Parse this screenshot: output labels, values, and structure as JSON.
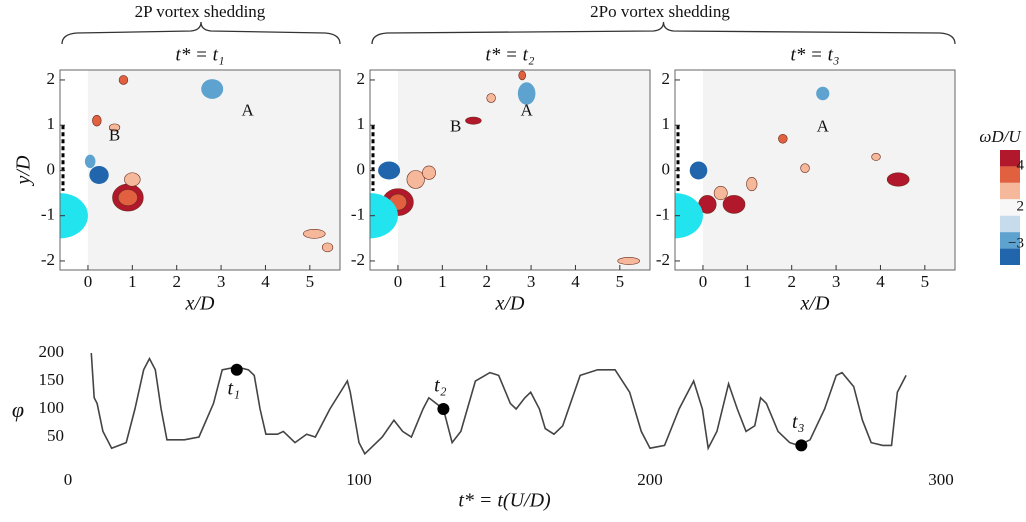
{
  "chart_data": [
    {
      "type": "field",
      "title": "t* = t₁",
      "group_label": "2P vortex shedding",
      "xlabel": "x/D",
      "ylabel": "y/D",
      "xlim": [
        -0.63,
        5.68
      ],
      "ylim": [
        -2.2,
        2.22
      ],
      "xticks": [
        0,
        1,
        2,
        3,
        4,
        5
      ],
      "yticks": [
        -2,
        -1,
        0,
        1,
        2
      ],
      "annotations": [
        "B",
        "A"
      ]
    },
    {
      "type": "field",
      "title": "t* = t₂",
      "group_label": "2Po vortex shedding",
      "xlabel": "x/D",
      "xlim": [
        -0.63,
        5.68
      ],
      "ylim": [
        -2.2,
        2.22
      ],
      "xticks": [
        0,
        1,
        2,
        3,
        4,
        5
      ],
      "yticks": [
        -2,
        -1,
        0,
        1,
        2
      ],
      "annotations": [
        "B",
        "A"
      ]
    },
    {
      "type": "field",
      "title": "t* = t₃",
      "xlabel": "x/D",
      "xlim": [
        -0.63,
        5.68
      ],
      "ylim": [
        -2.2,
        2.22
      ],
      "xticks": [
        0,
        1,
        2,
        3,
        4,
        5
      ],
      "yticks": [
        -2,
        -1,
        0,
        1,
        2
      ],
      "annotations": [
        "A"
      ]
    },
    {
      "type": "colorbar",
      "title": "ωD/U",
      "colors": [
        "#b2182b",
        "#e0603f",
        "#f6b89a",
        "#f7f7f7",
        "#c6dcec",
        "#5ea3cf",
        "#2166ac"
      ],
      "ticks": [
        4,
        2,
        {
          "value": -3,
          "label": "−3"
        }
      ]
    },
    {
      "type": "line",
      "xlabel": "t* = t(U/D)",
      "ylabel": "φ",
      "color": "#444444",
      "xlim": [
        0,
        300
      ],
      "ylim": [
        0,
        200
      ],
      "xticks": [
        0,
        100,
        200,
        300
      ],
      "yticks": [
        50,
        100,
        150,
        200
      ],
      "x": [
        8,
        9,
        10,
        12,
        15,
        20,
        23,
        26,
        28,
        30,
        32,
        34,
        40,
        45,
        50,
        53,
        58,
        62,
        64,
        66,
        68,
        72,
        74,
        78,
        82,
        85,
        90,
        96,
        97,
        100,
        102,
        105,
        108,
        112,
        115,
        118,
        122,
        124,
        129,
        130,
        132,
        135,
        140,
        145,
        148,
        152,
        154,
        157,
        159,
        162,
        164,
        167,
        170,
        176,
        182,
        188,
        193,
        197,
        200,
        205,
        210,
        215,
        218,
        220,
        223,
        227,
        230,
        233,
        236,
        238,
        240,
        244,
        248,
        251,
        255,
        260,
        264,
        266,
        270,
        273,
        276,
        280,
        283,
        285,
        288
      ],
      "values": [
        200,
        120,
        110,
        60,
        30,
        40,
        100,
        170,
        190,
        170,
        100,
        45,
        45,
        50,
        110,
        170,
        175,
        170,
        160,
        100,
        55,
        55,
        60,
        40,
        55,
        50,
        100,
        150,
        130,
        40,
        20,
        35,
        50,
        80,
        60,
        50,
        100,
        120,
        100,
        80,
        40,
        60,
        150,
        165,
        160,
        110,
        100,
        120,
        130,
        100,
        65,
        55,
        70,
        160,
        170,
        170,
        130,
        60,
        30,
        35,
        100,
        150,
        100,
        30,
        60,
        145,
        100,
        60,
        70,
        120,
        110,
        60,
        40,
        35,
        45,
        100,
        160,
        165,
        140,
        80,
        40,
        35,
        35,
        130,
        160
      ],
      "markers": {
        "x": [
          58,
          129,
          252
        ],
        "values": [
          170,
          100,
          35
        ],
        "labels": [
          "t₁",
          "t₂",
          "t₃"
        ]
      }
    }
  ]
}
